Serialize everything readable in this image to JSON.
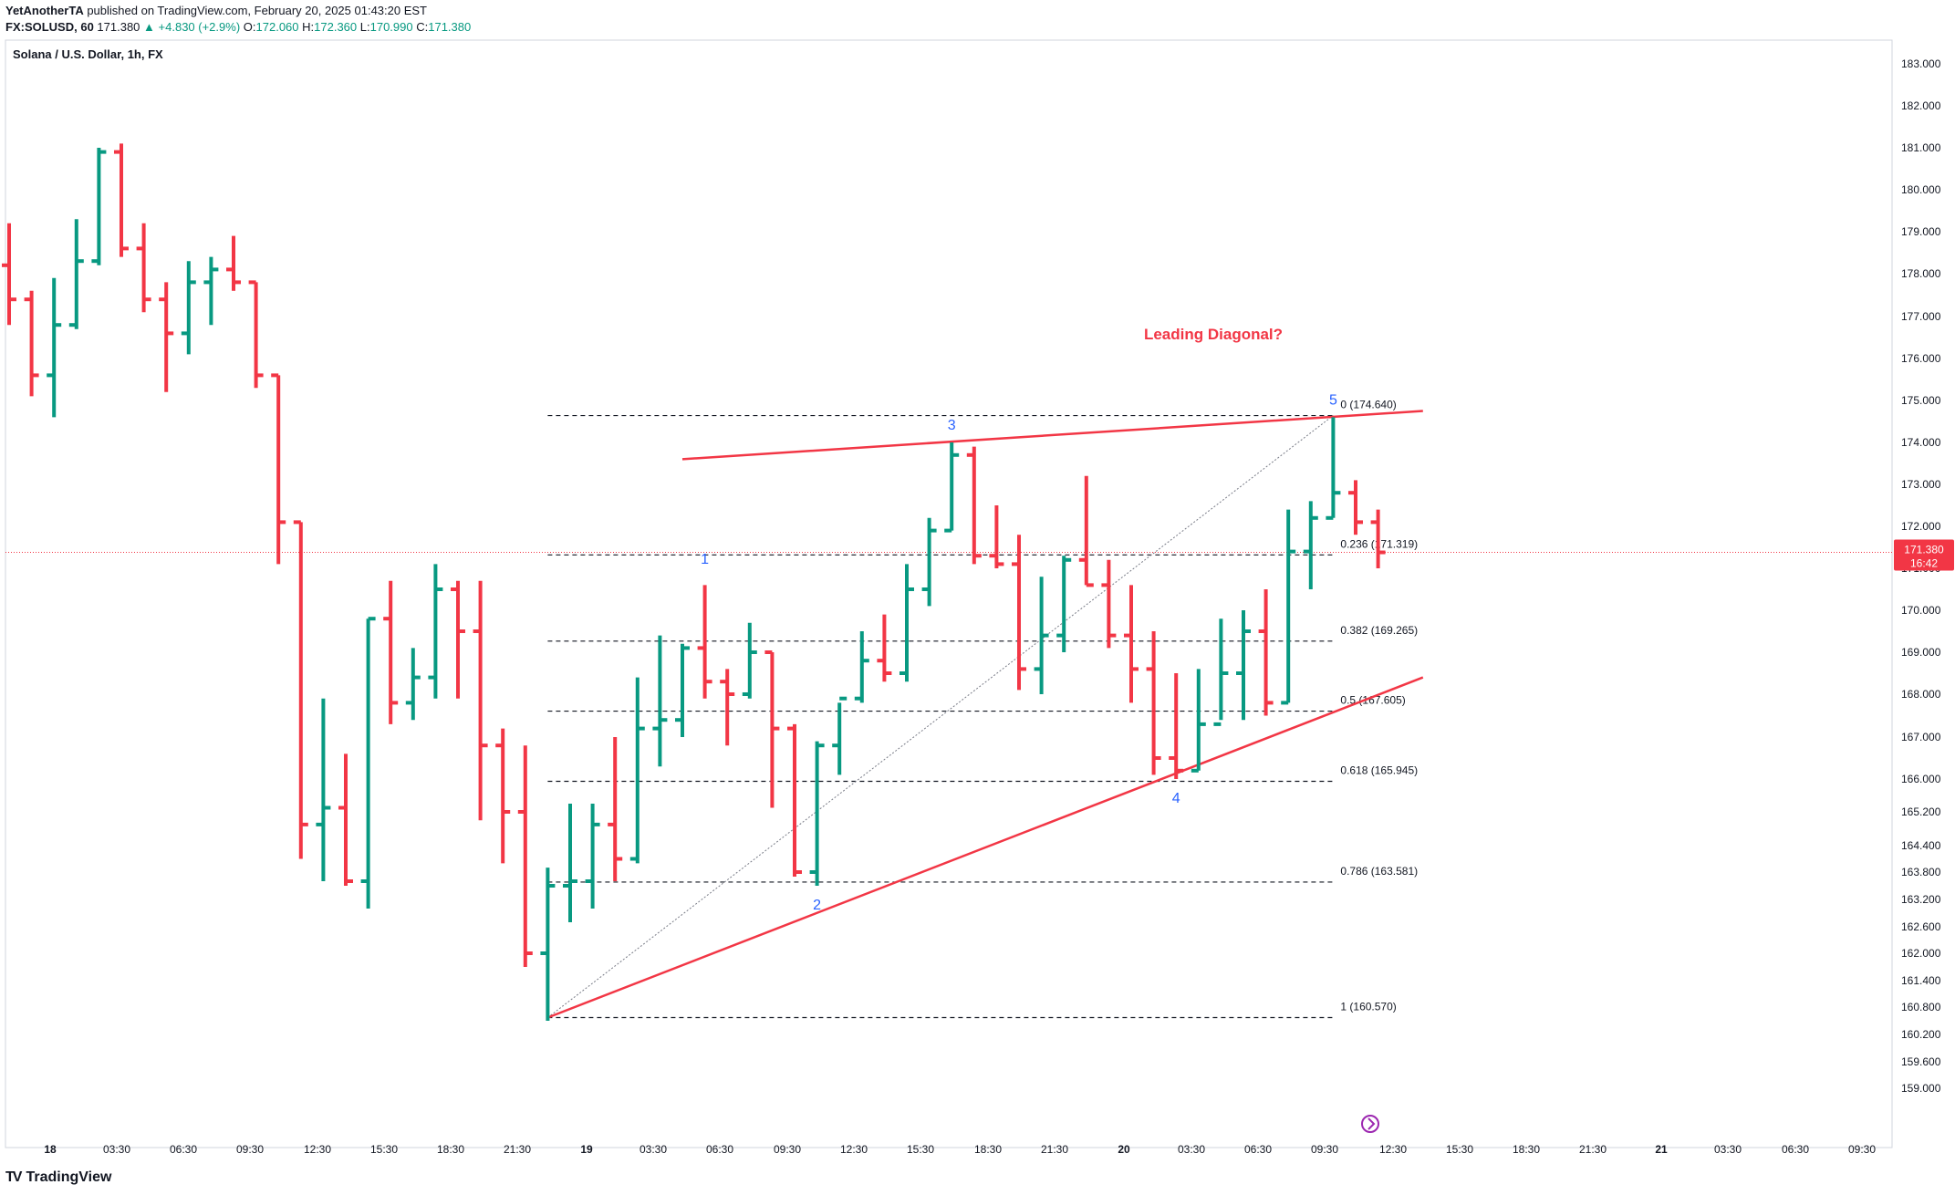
{
  "header": {
    "publisher": "YetAnotherTA",
    "published_text": " published on TradingView.com, February 20, 2025 01:43:20 EST",
    "symbol": "FX:SOLUSD, 60",
    "last": "171.380",
    "change": "▲ +4.830 (+2.9%)",
    "o_label": "O:",
    "o": "172.060",
    "h_label": "H:",
    "h": "172.360",
    "l_label": "L:",
    "l": "170.990",
    "c_label": "C:",
    "c": "171.380"
  },
  "footer": {
    "brand": "TradingView",
    "logo_mark": "TV"
  },
  "colors": {
    "up": "#089981",
    "down": "#f23645",
    "line": "#f23645",
    "label": "#2962ff",
    "text": "#131722"
  },
  "chart_data": {
    "type": "ohlc",
    "title": "Solana / U.S. Dollar, 1h, FX",
    "x_ticks": [
      "18",
      "03:30",
      "06:30",
      "09:30",
      "12:30",
      "15:30",
      "18:30",
      "21:30",
      "19",
      "03:30",
      "06:30",
      "09:30",
      "12:30",
      "15:30",
      "18:30",
      "21:30",
      "20",
      "03:30",
      "06:30",
      "09:30",
      "12:30",
      "15:30",
      "18:30",
      "21:30",
      "21",
      "03:30",
      "06:30",
      "09:30"
    ],
    "y_ticks": [
      "183.000",
      "182.000",
      "181.000",
      "180.000",
      "179.000",
      "178.000",
      "177.000",
      "176.000",
      "175.000",
      "174.000",
      "173.000",
      "172.000",
      "171.000",
      "170.000",
      "169.000",
      "168.000",
      "167.000",
      "166.000",
      "165.200",
      "164.400",
      "163.800",
      "163.200",
      "162.600",
      "162.000",
      "161.400",
      "160.800",
      "160.200",
      "159.600",
      "159.000"
    ],
    "last_price_label": "171.380",
    "countdown_label": "16:42",
    "bars": [
      {
        "t": "17 22:30",
        "o": 178.2,
        "h": 179.2,
        "l": 176.8,
        "c": 177.4
      },
      {
        "t": "17 23:30",
        "o": 177.4,
        "h": 177.6,
        "l": 175.1,
        "c": 175.6
      },
      {
        "t": "18 00:30",
        "o": 175.6,
        "h": 177.9,
        "l": 174.6,
        "c": 176.8
      },
      {
        "t": "18 01:30",
        "o": 176.8,
        "h": 179.3,
        "l": 176.7,
        "c": 178.3
      },
      {
        "t": "18 02:30",
        "o": 178.3,
        "h": 181.0,
        "l": 178.2,
        "c": 180.9
      },
      {
        "t": "18 03:30",
        "o": 180.9,
        "h": 181.1,
        "l": 178.4,
        "c": 178.6
      },
      {
        "t": "18 04:30",
        "o": 178.6,
        "h": 179.2,
        "l": 177.1,
        "c": 177.4
      },
      {
        "t": "18 05:30",
        "o": 177.4,
        "h": 177.8,
        "l": 175.2,
        "c": 176.6
      },
      {
        "t": "18 06:30",
        "o": 176.6,
        "h": 178.3,
        "l": 176.1,
        "c": 177.8
      },
      {
        "t": "18 07:30",
        "o": 177.8,
        "h": 178.4,
        "l": 176.8,
        "c": 178.1
      },
      {
        "t": "18 08:30",
        "o": 178.1,
        "h": 178.9,
        "l": 177.6,
        "c": 177.8
      },
      {
        "t": "18 09:30",
        "o": 177.8,
        "h": 177.8,
        "l": 175.3,
        "c": 175.6
      },
      {
        "t": "18 10:30",
        "o": 175.6,
        "h": 175.6,
        "l": 171.1,
        "c": 172.1
      },
      {
        "t": "18 11:30",
        "o": 172.1,
        "h": 172.1,
        "l": 164.1,
        "c": 164.9
      },
      {
        "t": "18 12:30",
        "o": 164.9,
        "h": 167.9,
        "l": 163.6,
        "c": 165.3
      },
      {
        "t": "18 13:30",
        "o": 165.3,
        "h": 166.6,
        "l": 163.5,
        "c": 163.6
      },
      {
        "t": "18 14:30",
        "o": 163.6,
        "h": 169.8,
        "l": 163.0,
        "c": 169.8
      },
      {
        "t": "18 15:30",
        "o": 169.8,
        "h": 170.7,
        "l": 167.3,
        "c": 167.8
      },
      {
        "t": "18 16:30",
        "o": 167.8,
        "h": 169.1,
        "l": 167.4,
        "c": 168.4
      },
      {
        "t": "18 17:30",
        "o": 168.4,
        "h": 171.1,
        "l": 167.9,
        "c": 170.5
      },
      {
        "t": "18 18:30",
        "o": 170.5,
        "h": 170.7,
        "l": 167.9,
        "c": 169.5
      },
      {
        "t": "18 19:30",
        "o": 169.5,
        "h": 170.7,
        "l": 165.0,
        "c": 166.8
      },
      {
        "t": "18 20:30",
        "o": 166.8,
        "h": 167.2,
        "l": 164.0,
        "c": 165.2
      },
      {
        "t": "18 21:30",
        "o": 165.2,
        "h": 166.8,
        "l": 161.7,
        "c": 162.0
      },
      {
        "t": "18 22:30",
        "o": 162.0,
        "h": 163.9,
        "l": 160.5,
        "c": 163.5
      },
      {
        "t": "18 23:30",
        "o": 163.5,
        "h": 165.4,
        "l": 162.7,
        "c": 163.6
      },
      {
        "t": "19 00:30",
        "o": 163.6,
        "h": 165.4,
        "l": 163.0,
        "c": 164.9
      },
      {
        "t": "19 01:30",
        "o": 164.9,
        "h": 167.0,
        "l": 163.6,
        "c": 164.1
      },
      {
        "t": "19 02:30",
        "o": 164.1,
        "h": 168.4,
        "l": 164.0,
        "c": 167.2
      },
      {
        "t": "19 03:30",
        "o": 167.2,
        "h": 169.4,
        "l": 166.3,
        "c": 167.4
      },
      {
        "t": "19 04:30",
        "o": 167.4,
        "h": 169.2,
        "l": 167.0,
        "c": 169.1
      },
      {
        "t": "19 05:30",
        "o": 169.1,
        "h": 170.6,
        "l": 167.9,
        "c": 168.3
      },
      {
        "t": "19 06:30",
        "o": 168.3,
        "h": 168.6,
        "l": 166.8,
        "c": 168.0
      },
      {
        "t": "19 07:30",
        "o": 168.0,
        "h": 169.7,
        "l": 167.9,
        "c": 169.0
      },
      {
        "t": "19 08:30",
        "o": 169.0,
        "h": 169.0,
        "l": 165.3,
        "c": 167.2
      },
      {
        "t": "19 09:30",
        "o": 167.2,
        "h": 167.3,
        "l": 163.7,
        "c": 163.8
      },
      {
        "t": "19 10:30",
        "o": 163.8,
        "h": 166.9,
        "l": 163.5,
        "c": 166.8
      },
      {
        "t": "19 11:30",
        "o": 166.8,
        "h": 167.8,
        "l": 166.1,
        "c": 167.9
      },
      {
        "t": "19 12:30",
        "o": 167.9,
        "h": 169.5,
        "l": 167.8,
        "c": 168.8
      },
      {
        "t": "19 13:30",
        "o": 168.8,
        "h": 169.9,
        "l": 168.3,
        "c": 168.5
      },
      {
        "t": "19 14:30",
        "o": 168.5,
        "h": 171.1,
        "l": 168.3,
        "c": 170.5
      },
      {
        "t": "19 15:30",
        "o": 170.5,
        "h": 172.2,
        "l": 170.1,
        "c": 171.9
      },
      {
        "t": "19 16:30",
        "o": 171.9,
        "h": 174.0,
        "l": 171.9,
        "c": 173.7
      },
      {
        "t": "19 17:30",
        "o": 173.7,
        "h": 173.9,
        "l": 171.1,
        "c": 171.3
      },
      {
        "t": "19 18:30",
        "o": 171.3,
        "h": 172.5,
        "l": 171.0,
        "c": 171.1
      },
      {
        "t": "19 19:30",
        "o": 171.1,
        "h": 171.8,
        "l": 168.1,
        "c": 168.6
      },
      {
        "t": "19 20:30",
        "o": 168.6,
        "h": 170.8,
        "l": 168.0,
        "c": 169.4
      },
      {
        "t": "19 21:30",
        "o": 169.4,
        "h": 171.3,
        "l": 169.0,
        "c": 171.2
      },
      {
        "t": "19 22:30",
        "o": 171.2,
        "h": 173.2,
        "l": 170.6,
        "c": 170.6
      },
      {
        "t": "19 23:30",
        "o": 170.6,
        "h": 171.2,
        "l": 169.1,
        "c": 169.4
      },
      {
        "t": "20 00:30",
        "o": 169.4,
        "h": 170.6,
        "l": 167.8,
        "c": 168.6
      },
      {
        "t": "20 01:30",
        "o": 168.6,
        "h": 169.5,
        "l": 166.1,
        "c": 166.5
      },
      {
        "t": "20 02:30",
        "o": 166.5,
        "h": 168.5,
        "l": 166.0,
        "c": 166.2
      },
      {
        "t": "20 03:30",
        "o": 166.2,
        "h": 168.6,
        "l": 166.2,
        "c": 167.3
      },
      {
        "t": "20 04:30",
        "o": 167.3,
        "h": 169.8,
        "l": 167.4,
        "c": 168.5
      },
      {
        "t": "20 05:30",
        "o": 168.5,
        "h": 170.0,
        "l": 167.4,
        "c": 169.5
      },
      {
        "t": "20 06:30",
        "o": 169.5,
        "h": 170.5,
        "l": 167.5,
        "c": 167.8
      },
      {
        "t": "20 07:30",
        "o": 167.8,
        "h": 172.4,
        "l": 167.8,
        "c": 171.4
      },
      {
        "t": "20 08:30",
        "o": 171.4,
        "h": 172.6,
        "l": 170.5,
        "c": 172.2
      },
      {
        "t": "20 09:30",
        "o": 172.2,
        "h": 174.6,
        "l": 172.2,
        "c": 172.8
      },
      {
        "t": "20 10:30",
        "o": 172.8,
        "h": 173.1,
        "l": 171.8,
        "c": 172.1
      },
      {
        "t": "20 11:30",
        "o": 172.1,
        "h": 172.4,
        "l": 171.0,
        "c": 171.38
      }
    ],
    "fib_levels": [
      {
        "label": "0 (174.640)",
        "value": 174.64
      },
      {
        "label": "0.236 (171.319)",
        "value": 171.319
      },
      {
        "label": "0.382 (169.265)",
        "value": 169.265
      },
      {
        "label": "0.5 (167.605)",
        "value": 167.605
      },
      {
        "label": "0.618 (165.945)",
        "value": 165.945
      },
      {
        "label": "0.786 (163.581)",
        "value": 163.581
      },
      {
        "label": "1 (160.570)",
        "value": 160.57
      }
    ],
    "wave_labels": [
      {
        "text": "1",
        "t": "19 05:30",
        "price": 170.8,
        "anchor": "above"
      },
      {
        "text": "2",
        "t": "19 10:30",
        "price": 163.5,
        "anchor": "below"
      },
      {
        "text": "3",
        "t": "19 16:30",
        "price": 174.0,
        "anchor": "above"
      },
      {
        "text": "4",
        "t": "20 02:30",
        "price": 166.0,
        "anchor": "below"
      },
      {
        "text": "5",
        "t": "20 09:30",
        "price": 174.6,
        "anchor": "above"
      }
    ],
    "trendlines": [
      {
        "name": "upper",
        "from": {
          "t": "19 04:30",
          "price": 173.6
        },
        "to": {
          "t": "20 13:30",
          "price": 174.75
        }
      },
      {
        "name": "lower",
        "from": {
          "t": "18 22:30",
          "price": 160.57
        },
        "to": {
          "t": "20 13:30",
          "price": 168.4
        }
      }
    ],
    "annotation": "Leading Diagonal?",
    "ylim": [
      158.8,
      183.4
    ],
    "scale": "nonlinear-as-printed"
  }
}
